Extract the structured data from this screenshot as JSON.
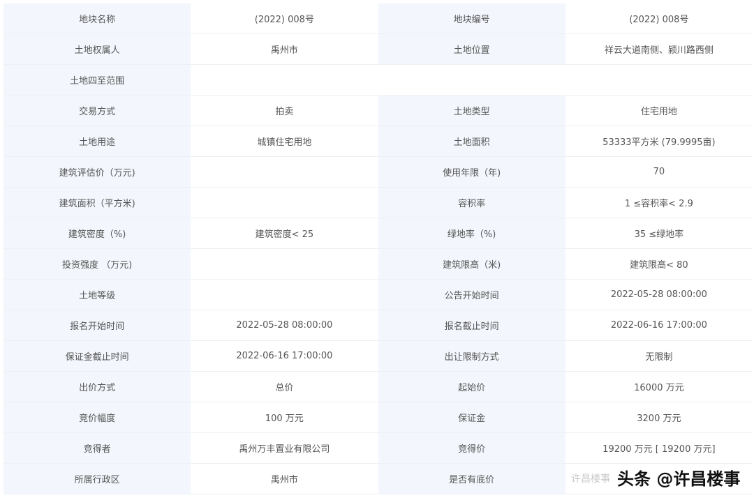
{
  "rows": [
    [
      "地块名称",
      "(2022) 008号",
      "地块编号",
      "(2022) 008号"
    ],
    [
      "土地权属人",
      "禹州市",
      "土地位置",
      "祥云大道南侧、颍川路西侧"
    ],
    [
      "土地四至范围",
      "",
      "",
      ""
    ],
    [
      "交易方式",
      "拍卖",
      "土地类型",
      "住宅用地"
    ],
    [
      "土地用途",
      "城镇住宅用地",
      "土地面积",
      "53333平方米 (79.9995亩)"
    ],
    [
      "建筑评估价（万元)",
      "",
      "使用年限（年)",
      "70"
    ],
    [
      "建筑面积（平方米)",
      "",
      "容积率",
      "1 ≤容积率< 2.9"
    ],
    [
      "建筑密度（%)",
      "建筑密度< 25",
      "绿地率（%)",
      "35 ≤绿地率"
    ],
    [
      "投资强度 （万元)",
      "",
      "建筑限高（米)",
      "建筑限高< 80"
    ],
    [
      "土地等级",
      "",
      "公告开始时间",
      "2022-05-28 08:00:00"
    ],
    [
      "报名开始时间",
      "2022-05-28 08:00:00",
      "报名截止时间",
      "2022-06-16 17:00:00"
    ],
    [
      "保证金截止时间",
      "2022-06-16 17:00:00",
      "出让限制方式",
      "无限制"
    ],
    [
      "出价方式",
      "总价",
      "起始价",
      "16000 万元"
    ],
    [
      "竞价幅度",
      "100 万元",
      "保证金",
      "3200 万元"
    ],
    [
      "竞得者",
      "禹州万丰置业有限公司",
      "竞得价",
      "19200 万元 [ 19200 万元]"
    ],
    [
      "所属行政区",
      "禹州市",
      "是否有底价",
      ""
    ]
  ],
  "watermark": "头条 @许昌楼事",
  "watermark_faint": "许昌楼事"
}
